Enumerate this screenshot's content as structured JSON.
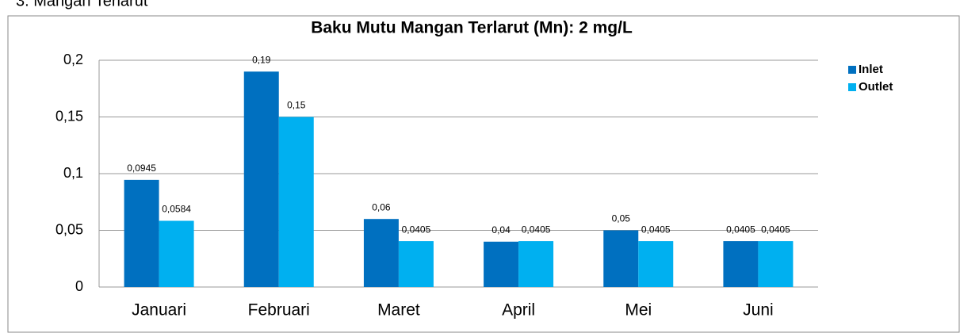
{
  "heading": "3.   Mangan Terlarut",
  "chart_data": {
    "type": "bar",
    "title": "Baku Mutu Mangan Terlarut (Mn): 2 mg/L",
    "categories": [
      "Januari",
      "Februari",
      "Maret",
      "April",
      "Mei",
      "Juni"
    ],
    "series": [
      {
        "name": "Inlet",
        "color": "#0070c0",
        "values": [
          0.0945,
          0.19,
          0.06,
          0.04,
          0.05,
          0.0405
        ],
        "value_labels": [
          "0,0945",
          "0,19",
          "0,06",
          "0,04",
          "0,05",
          "0,0405"
        ]
      },
      {
        "name": "Outlet",
        "color": "#00b0f0",
        "values": [
          0.0584,
          0.15,
          0.0405,
          0.0405,
          0.0405,
          0.0405
        ],
        "value_labels": [
          "0,0584",
          "0,15",
          "0,0405",
          "0,0405",
          "0,0405",
          "0,0405"
        ]
      }
    ],
    "ylim": [
      0,
      0.2
    ],
    "yticks": [
      0,
      {
        "value": 0.05,
        "label": "0,05"
      },
      {
        "value": 0.1,
        "label": "0,1"
      },
      {
        "value": 0.15,
        "label": "0,15"
      },
      {
        "value": 0.2,
        "label": "0,2"
      }
    ],
    "grid": true,
    "legend": "right"
  }
}
